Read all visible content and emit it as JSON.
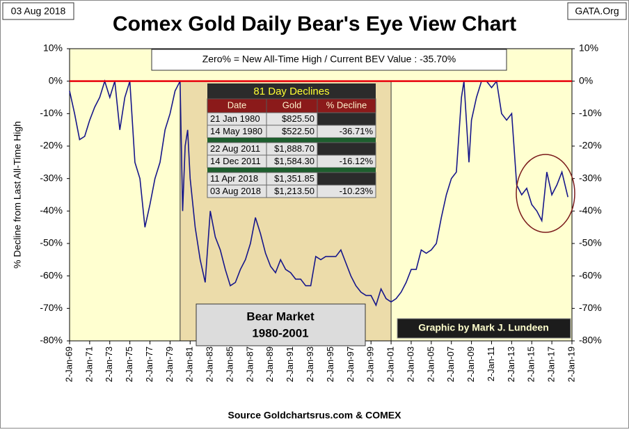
{
  "chart_data": {
    "type": "line",
    "title": "Comex Gold Daily Bear's Eye View Chart",
    "date_label": "03 Aug 2018",
    "site_label": "GATA.Org",
    "source": "Source Goldchartsrus.com & COMEX",
    "y_label": "% Decline from Last All-Time High",
    "header_note": "Zero% = New All-Time High  / Current BEV Value :  -35.70%",
    "credit": "Graphic by Mark J. Lundeen",
    "shaded_region": {
      "label": [
        "Bear Market",
        "1980-2001"
      ],
      "x": [
        1980,
        2001
      ],
      "color": "#ecdcaa"
    },
    "reference_line": {
      "value": 0,
      "color": "#e8000b"
    },
    "color": "#16168a",
    "x": [
      1969,
      1969.5,
      1970,
      1970.5,
      1971,
      1971.5,
      1972,
      1972.5,
      1973,
      1973.5,
      1974,
      1974.5,
      1975,
      1975.5,
      1976,
      1976.5,
      1977,
      1977.5,
      1978,
      1978.5,
      1979,
      1979.5,
      1980,
      1980.25,
      1980.5,
      1980.75,
      1981,
      1981.5,
      1982,
      1982.5,
      1983,
      1983.5,
      1984,
      1984.5,
      1985,
      1985.5,
      1986,
      1986.5,
      1987,
      1987.5,
      1988,
      1988.5,
      1989,
      1989.5,
      1990,
      1990.5,
      1991,
      1991.5,
      1992,
      1992.5,
      1993,
      1993.5,
      1994,
      1994.5,
      1995,
      1995.5,
      1996,
      1996.5,
      1997,
      1997.5,
      1998,
      1998.5,
      1999,
      1999.5,
      2000,
      2000.5,
      2001,
      2001.5,
      2002,
      2002.5,
      2003,
      2003.5,
      2004,
      2004.5,
      2005,
      2005.5,
      2006,
      2006.5,
      2007,
      2007.5,
      2008,
      2008.25,
      2008.75,
      2009,
      2009.5,
      2010,
      2010.5,
      2011,
      2011.5,
      2012,
      2012.5,
      2013,
      2013.5,
      2014,
      2014.5,
      2015,
      2015.5,
      2016,
      2016.5,
      2017,
      2017.5,
      2018,
      2018.6
    ],
    "values": [
      -3,
      -10,
      -18,
      -17,
      -12,
      -8,
      -5,
      0,
      -5,
      0,
      -15,
      -5,
      0,
      -25,
      -30,
      -45,
      -38,
      -30,
      -25,
      -15,
      -10,
      -3,
      0,
      -40,
      -20,
      -15,
      -30,
      -45,
      -55,
      -62,
      -40,
      -48,
      -52,
      -58,
      -63,
      -62,
      -58,
      -55,
      -50,
      -42,
      -47,
      -53,
      -57,
      -59,
      -55,
      -58,
      -59,
      -61,
      -61,
      -63,
      -63,
      -54,
      -55,
      -54,
      -54,
      -54,
      -52,
      -56,
      -60,
      -63,
      -65,
      -66,
      -66,
      -69,
      -64,
      -67,
      -68,
      -67,
      -65,
      -62,
      -58,
      -58,
      -52,
      -53,
      -52,
      -50,
      -42,
      -35,
      -30,
      -28,
      -5,
      0,
      -25,
      -12,
      -5,
      0,
      0,
      -2,
      0,
      -10,
      -12,
      -10,
      -32,
      -35,
      -33,
      -38,
      -40,
      -43,
      -28,
      -35,
      -32,
      -28,
      -35.7
    ],
    "xlim": [
      1969,
      2019
    ],
    "xticks": [
      {
        "value": 1969,
        "label": "2-Jan-69"
      },
      {
        "value": 1971,
        "label": "2-Jan-71"
      },
      {
        "value": 1973,
        "label": "2-Jan-73"
      },
      {
        "value": 1975,
        "label": "2-Jan-75"
      },
      {
        "value": 1977,
        "label": "2-Jan-77"
      },
      {
        "value": 1979,
        "label": "2-Jan-79"
      },
      {
        "value": 1981,
        "label": "2-Jan-81"
      },
      {
        "value": 1983,
        "label": "2-Jan-83"
      },
      {
        "value": 1985,
        "label": "2-Jan-85"
      },
      {
        "value": 1987,
        "label": "2-Jan-87"
      },
      {
        "value": 1989,
        "label": "2-Jan-89"
      },
      {
        "value": 1991,
        "label": "2-Jan-91"
      },
      {
        "value": 1993,
        "label": "2-Jan-93"
      },
      {
        "value": 1995,
        "label": "2-Jan-95"
      },
      {
        "value": 1997,
        "label": "2-Jan-97"
      },
      {
        "value": 1999,
        "label": "2-Jan-99"
      },
      {
        "value": 2001,
        "label": "2-Jan-01"
      },
      {
        "value": 2003,
        "label": "2-Jan-03"
      },
      {
        "value": 2005,
        "label": "2-Jan-05"
      },
      {
        "value": 2007,
        "label": "2-Jan-07"
      },
      {
        "value": 2009,
        "label": "2-Jan-09"
      },
      {
        "value": 2011,
        "label": "2-Jan-11"
      },
      {
        "value": 2013,
        "label": "2-Jan-13"
      },
      {
        "value": 2015,
        "label": "2-Jan-15"
      },
      {
        "value": 2017,
        "label": "2-Jan-17"
      },
      {
        "value": 2019,
        "label": "2-Jan-19"
      }
    ],
    "ylim": [
      -80,
      10
    ],
    "yticks": [
      {
        "value": 10,
        "label": "10%"
      },
      {
        "value": 0,
        "label": "0%"
      },
      {
        "value": -10,
        "label": "-10%"
      },
      {
        "value": -20,
        "label": "-20%"
      },
      {
        "value": -30,
        "label": "-30%"
      },
      {
        "value": -40,
        "label": "-40%"
      },
      {
        "value": -50,
        "label": "-50%"
      },
      {
        "value": -60,
        "label": "-60%"
      },
      {
        "value": -70,
        "label": "-70%"
      },
      {
        "value": -80,
        "label": "-80%"
      }
    ],
    "table": {
      "title": "81 Day Declines",
      "columns": [
        "Date",
        "Gold",
        "% Decline"
      ],
      "groups": [
        [
          [
            "21 Jan 1980",
            "$825.50"
          ],
          [
            "14 May 1980",
            "$522.50",
            "-36.71%"
          ]
        ],
        [
          [
            "22 Aug 2011",
            "$1,888.70"
          ],
          [
            "14 Dec 2011",
            "$1,584.30",
            "-16.12%"
          ]
        ],
        [
          [
            "11 Apr 2018",
            "$1,351.85"
          ],
          [
            "03 Aug 2018",
            "$1,213.50",
            "-10.23%"
          ]
        ]
      ]
    }
  }
}
